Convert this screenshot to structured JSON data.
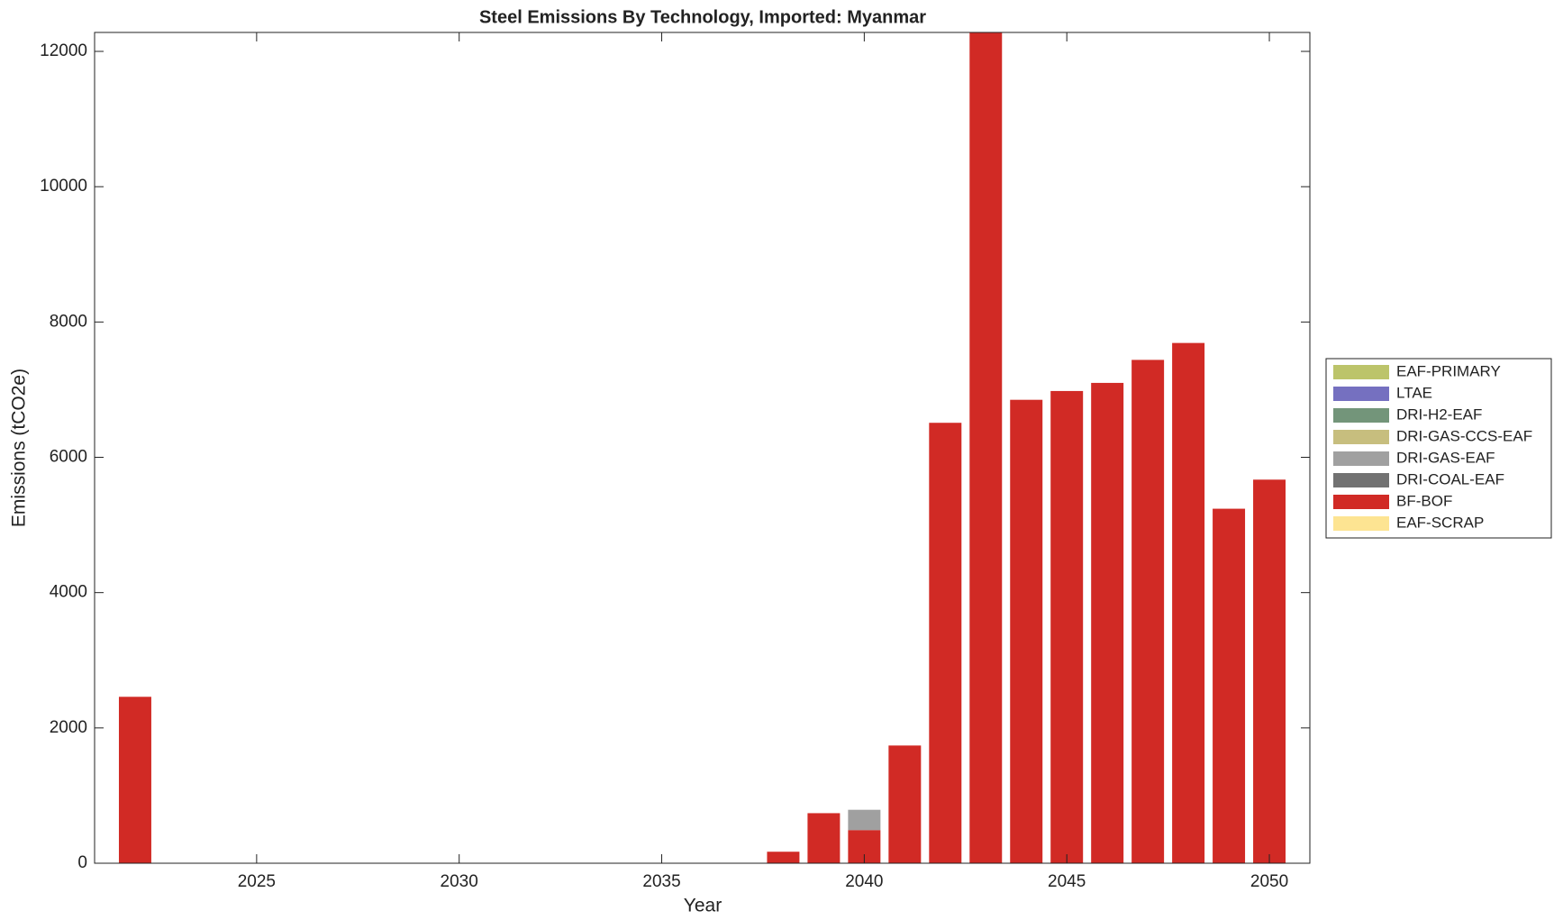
{
  "chart_data": {
    "type": "bar",
    "stacked": true,
    "title": "Steel Emissions By Technology, Imported: Myanmar",
    "x_label": "Year",
    "y_label": "Emissions (tCO2e)",
    "x": [
      2022,
      2023,
      2024,
      2025,
      2026,
      2027,
      2028,
      2029,
      2030,
      2031,
      2032,
      2033,
      2034,
      2035,
      2036,
      2037,
      2038,
      2039,
      2040,
      2041,
      2042,
      2043,
      2044,
      2045,
      2046,
      2047,
      2048,
      2049,
      2050
    ],
    "xlim": [
      2021,
      2051
    ],
    "xticks": [
      2025,
      2030,
      2035,
      2040,
      2045,
      2050
    ],
    "ylim": [
      0,
      12280
    ],
    "yticks": [
      0,
      2000,
      4000,
      6000,
      8000,
      10000,
      12000
    ],
    "legend_position": "outside-right",
    "series": [
      {
        "name": "EAF-PRIMARY",
        "color": "#bcc46a",
        "values": [
          0,
          0,
          0,
          0,
          0,
          0,
          0,
          0,
          0,
          0,
          0,
          0,
          0,
          0,
          0,
          0,
          0,
          0,
          0,
          0,
          0,
          0,
          0,
          0,
          0,
          0,
          0,
          0,
          0
        ]
      },
      {
        "name": "LTAE",
        "color": "#7570c0",
        "values": [
          0,
          0,
          0,
          0,
          0,
          0,
          0,
          0,
          0,
          0,
          0,
          0,
          0,
          0,
          0,
          0,
          0,
          0,
          0,
          0,
          0,
          0,
          0,
          0,
          0,
          0,
          0,
          0,
          0
        ]
      },
      {
        "name": "DRI-H2-EAF",
        "color": "#73957a",
        "values": [
          0,
          0,
          0,
          0,
          0,
          0,
          0,
          0,
          0,
          0,
          0,
          0,
          0,
          0,
          0,
          0,
          0,
          0,
          0,
          0,
          0,
          0,
          0,
          0,
          0,
          0,
          0,
          0,
          0
        ]
      },
      {
        "name": "DRI-GAS-CCS-EAF",
        "color": "#c7be7e",
        "values": [
          0,
          0,
          0,
          0,
          0,
          0,
          0,
          0,
          0,
          0,
          0,
          0,
          0,
          0,
          0,
          0,
          0,
          0,
          0,
          0,
          0,
          0,
          0,
          0,
          0,
          0,
          0,
          0,
          0
        ]
      },
      {
        "name": "DRI-GAS-EAF",
        "color": "#a0a0a0",
        "values": [
          0,
          0,
          0,
          0,
          0,
          0,
          0,
          0,
          0,
          0,
          0,
          0,
          0,
          0,
          0,
          0,
          0,
          0,
          300,
          0,
          0,
          0,
          0,
          0,
          0,
          0,
          0,
          0,
          0
        ]
      },
      {
        "name": "DRI-COAL-EAF",
        "color": "#727272",
        "values": [
          0,
          0,
          0,
          0,
          0,
          0,
          0,
          0,
          0,
          0,
          0,
          0,
          0,
          0,
          0,
          0,
          0,
          0,
          0,
          0,
          0,
          0,
          0,
          0,
          0,
          0,
          0,
          0,
          0
        ]
      },
      {
        "name": "BF-BOF",
        "color": "#d12a25",
        "values": [
          2460,
          0,
          0,
          0,
          0,
          0,
          0,
          0,
          0,
          0,
          0,
          0,
          0,
          0,
          0,
          0,
          170,
          740,
          490,
          1740,
          6510,
          12300,
          6850,
          6980,
          7100,
          7440,
          7690,
          5240,
          5670
        ]
      },
      {
        "name": "EAF-SCRAP",
        "color": "#fde492",
        "values": [
          0,
          0,
          0,
          0,
          0,
          0,
          0,
          0,
          0,
          0,
          0,
          0,
          0,
          0,
          0,
          0,
          0,
          0,
          0,
          0,
          0,
          0,
          0,
          0,
          0,
          0,
          0,
          0,
          0
        ]
      }
    ]
  }
}
